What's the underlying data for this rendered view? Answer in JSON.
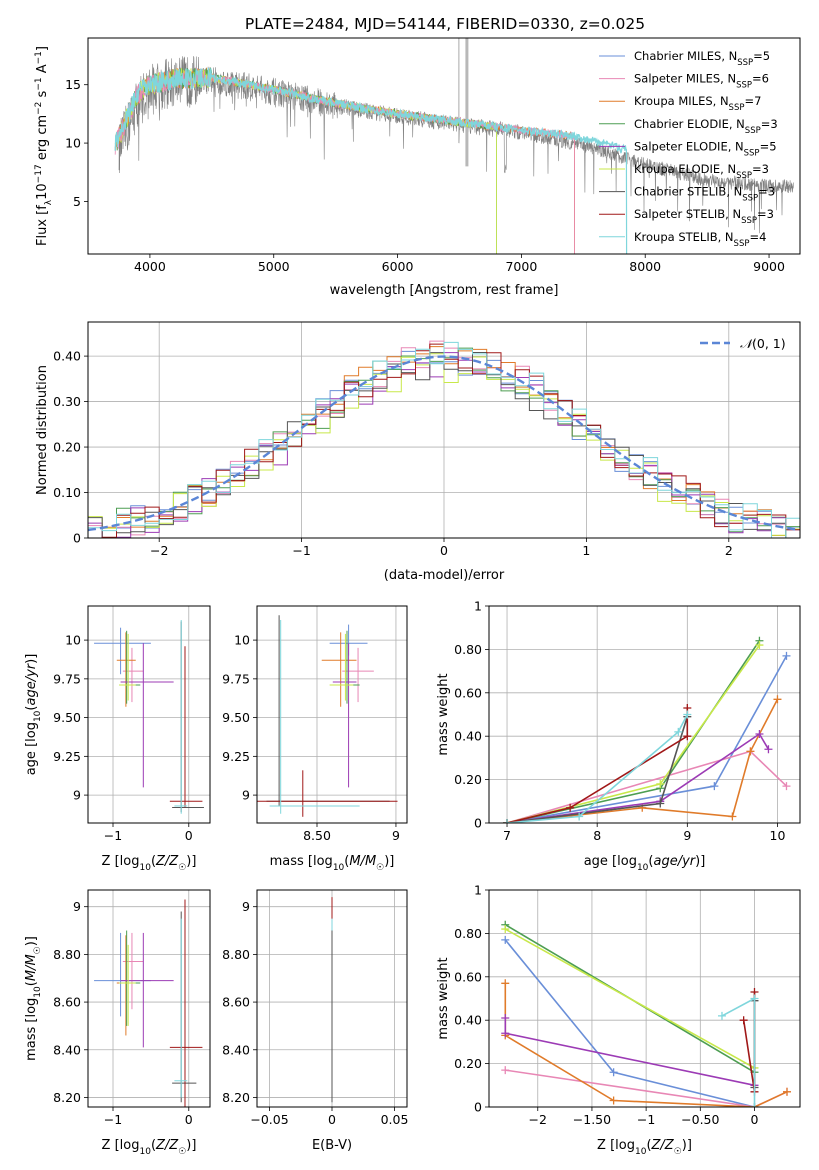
{
  "figure": {
    "title": "PLATE=2484, MJD=54144, FIBERID=0330, z=0.025"
  },
  "palette": {
    "chabrier_miles": "#6a8fd8",
    "salpeter_miles": "#e887b5",
    "kroupa_miles": "#e07b2a",
    "chabrier_elodie": "#4d9e52",
    "salpeter_elodie": "#9c3bb5",
    "kroupa_elodie": "#c8e84a",
    "chabrier_stelib": "#555555",
    "salpeter_stelib": "#a01818",
    "kroupa_stelib": "#7fd6dc",
    "data_spectrum": "#808080",
    "gaussian": "#5b86d6",
    "grid": "#b0b0b0"
  },
  "legend_entries": [
    {
      "key": "chabrier_miles",
      "pre": "Chabrier MILES, N",
      "sub": "SSP",
      "post": "=5"
    },
    {
      "key": "salpeter_miles",
      "pre": "Salpeter MILES, N",
      "sub": "SSP",
      "post": "=6"
    },
    {
      "key": "kroupa_miles",
      "pre": "Kroupa MILES, N",
      "sub": "SSP",
      "post": "=7"
    },
    {
      "key": "chabrier_elodie",
      "pre": "Chabrier ELODIE, N",
      "sub": "SSP",
      "post": "=3"
    },
    {
      "key": "salpeter_elodie",
      "pre": "Salpeter ELODIE, N",
      "sub": "SSP",
      "post": "=5"
    },
    {
      "key": "kroupa_elodie",
      "pre": "Kroupa ELODIE, N",
      "sub": "SSP",
      "post": "=3"
    },
    {
      "key": "chabrier_stelib",
      "pre": "Chabrier STELIB, N",
      "sub": "SSP",
      "post": "=3"
    },
    {
      "key": "salpeter_stelib",
      "pre": "Salpeter STELIB, N",
      "sub": "SSP",
      "post": "=3"
    },
    {
      "key": "kroupa_stelib",
      "pre": "Kroupa STELIB, N",
      "sub": "SSP",
      "post": "=4"
    }
  ],
  "chart_data": [
    {
      "id": "spectrum",
      "type": "line",
      "xlabel": "wavelength [Angstrom, rest frame]",
      "ylabel": "Flux [f_λ 10^-17 erg cm^-2 s^-1 A^-1]",
      "xlim": [
        3500,
        9250
      ],
      "ylim": [
        0.5,
        19
      ],
      "xticks": [
        4000,
        5000,
        6000,
        7000,
        8000,
        9000
      ],
      "yticks": [
        5,
        10,
        15
      ],
      "data_continuum": [
        [
          3750,
          9.5
        ],
        [
          3900,
          13.5
        ],
        [
          4000,
          14.6
        ],
        [
          4200,
          15.2
        ],
        [
          4500,
          15.4
        ],
        [
          5000,
          14.4
        ],
        [
          5500,
          13.2
        ],
        [
          6000,
          12.3
        ],
        [
          6500,
          11.6
        ],
        [
          7000,
          10.9
        ],
        [
          7500,
          9.8
        ],
        [
          8000,
          8.2
        ],
        [
          8500,
          6.8
        ],
        [
          9000,
          6.3
        ],
        [
          9200,
          6.3
        ]
      ],
      "model_continuum": [
        [
          3720,
          9.8
        ],
        [
          3900,
          14.2
        ],
        [
          4000,
          15.0
        ],
        [
          4200,
          15.5
        ],
        [
          4500,
          15.6
        ],
        [
          5000,
          14.6
        ],
        [
          5500,
          13.4
        ],
        [
          6000,
          12.5
        ],
        [
          6500,
          11.8
        ],
        [
          7000,
          11.1
        ],
        [
          7420,
          10.6
        ],
        [
          7800,
          9.6
        ]
      ],
      "model_end": {
        "miles": 7430,
        "elodie": 6800,
        "stelib": 7850
      }
    },
    {
      "id": "residuals",
      "type": "histogram",
      "xlabel": "(data-model)/error",
      "ylabel": "Normed distribution",
      "xlim": [
        -2.5,
        2.5
      ],
      "ylim": [
        0,
        0.475
      ],
      "xticks": [
        -2,
        -1,
        0,
        1,
        2
      ],
      "yticks": [
        0,
        0.1,
        0.2,
        0.3,
        0.4
      ],
      "bin_width": 0.1,
      "legend": "N(0,1)"
    },
    {
      "id": "age_vs_Z",
      "type": "errorbar",
      "xlabel": "Z [log10(Z/Z☉)]",
      "ylabel": "age [log10(age/yr)]",
      "xlim": [
        -1.33,
        0.28
      ],
      "ylim": [
        8.82,
        10.22
      ],
      "xticks": [
        -1,
        0
      ],
      "yticks": [
        9.0,
        9.25,
        9.5,
        9.75,
        10.0
      ],
      "points": [
        {
          "key": "chabrier_miles",
          "x": -0.9,
          "xerr": [
            0.35,
            0.4
          ],
          "y": 9.98,
          "yerr": [
            0.2,
            0.1
          ]
        },
        {
          "key": "salpeter_miles",
          "x": -0.75,
          "xerr": [
            0.12,
            0.15
          ],
          "y": 9.8,
          "yerr": [
            0.2,
            0.15
          ]
        },
        {
          "key": "kroupa_miles",
          "x": -0.83,
          "xerr": [
            0.12,
            0.13
          ],
          "y": 9.87,
          "yerr": [
            0.3,
            0.18
          ]
        },
        {
          "key": "chabrier_elodie",
          "x": -0.82,
          "xerr": [
            0.08,
            0.18
          ],
          "y": 9.71,
          "yerr": [
            0.12,
            0.35
          ]
        },
        {
          "key": "salpeter_elodie",
          "x": -0.6,
          "xerr": [
            0.3,
            0.4
          ],
          "y": 9.73,
          "yerr": [
            0.68,
            0.25
          ]
        },
        {
          "key": "kroupa_elodie",
          "x": -0.8,
          "xerr": [
            0.12,
            0.1
          ],
          "y": 9.71,
          "yerr": [
            0.1,
            0.33
          ]
        },
        {
          "key": "chabrier_stelib",
          "x": -0.1,
          "xerr": [
            0.12,
            0.3
          ],
          "y": 8.92,
          "yerr": [
            0.03,
            1.2
          ]
        },
        {
          "key": "salpeter_stelib",
          "x": -0.05,
          "xerr": [
            0.2,
            0.23
          ],
          "y": 8.96,
          "yerr": [
            0.04,
            1.0
          ]
        },
        {
          "key": "kroupa_stelib",
          "x": -0.1,
          "xerr": [
            0.09,
            0.08
          ],
          "y": 8.93,
          "yerr": [
            0.05,
            1.2
          ]
        }
      ]
    },
    {
      "id": "age_vs_mass",
      "type": "errorbar",
      "xlabel": "mass [log10(M/M☉)]",
      "ylabel": "",
      "xlim": [
        8.12,
        9.07
      ],
      "ylim": [
        8.82,
        10.22
      ],
      "xticks": [
        8.5,
        9.0
      ],
      "yticks": [
        9.0,
        9.25,
        9.5,
        9.75,
        10.0
      ],
      "points": [
        {
          "key": "chabrier_miles",
          "x": 8.7,
          "xerr": [
            0.12,
            0.12
          ],
          "y": 9.98,
          "yerr": [
            0.08,
            0.12
          ]
        },
        {
          "key": "salpeter_miles",
          "x": 8.76,
          "xerr": [
            0.1,
            0.1
          ],
          "y": 9.8,
          "yerr": [
            0.2,
            0.15
          ]
        },
        {
          "key": "kroupa_miles",
          "x": 8.65,
          "xerr": [
            0.12,
            0.1
          ],
          "y": 9.87,
          "yerr": [
            0.3,
            0.18
          ]
        },
        {
          "key": "chabrier_elodie",
          "x": 8.69,
          "xerr": [
            0.1,
            0.08
          ],
          "y": 9.71,
          "yerr": [
            0.12,
            0.35
          ]
        },
        {
          "key": "salpeter_elodie",
          "x": 8.7,
          "xerr": [
            0.1,
            0.05
          ],
          "y": 9.73,
          "yerr": [
            0.68,
            0.25
          ]
        },
        {
          "key": "kroupa_elodie",
          "x": 8.68,
          "xerr": [
            0.1,
            0.05
          ],
          "y": 9.71,
          "yerr": [
            0.1,
            0.33
          ]
        },
        {
          "key": "chabrier_stelib",
          "x": 8.26,
          "xerr": [
            0.08,
            0.7
          ],
          "y": 8.96,
          "yerr": [
            0.03,
            1.2
          ]
        },
        {
          "key": "salpeter_stelib",
          "x": 8.41,
          "xerr": [
            0.3,
            0.6
          ],
          "y": 8.96,
          "yerr": [
            0.1,
            0.2
          ]
        },
        {
          "key": "kroupa_stelib",
          "x": 8.27,
          "xerr": [
            0.07,
            0.5
          ],
          "y": 8.93,
          "yerr": [
            0.05,
            1.2
          ]
        }
      ]
    },
    {
      "id": "mass_vs_Z",
      "type": "errorbar",
      "xlabel": "Z [log10(Z/Z☉)]",
      "ylabel": "mass [log10(M/M☉)]",
      "xlim": [
        -1.33,
        0.28
      ],
      "ylim": [
        8.16,
        9.07
      ],
      "xticks": [
        -1,
        0
      ],
      "yticks": [
        8.2,
        8.4,
        8.6,
        8.8,
        9.0
      ],
      "points": [
        {
          "key": "chabrier_miles",
          "x": -0.9,
          "xerr": [
            0.35,
            0.4
          ],
          "y": 8.69,
          "yerr": [
            0.15,
            0.2
          ]
        },
        {
          "key": "salpeter_miles",
          "x": -0.75,
          "xerr": [
            0.12,
            0.15
          ],
          "y": 8.77,
          "yerr": [
            0.2,
            0.12
          ]
        },
        {
          "key": "kroupa_miles",
          "x": -0.83,
          "xerr": [
            0.12,
            0.13
          ],
          "y": 8.68,
          "yerr": [
            0.22,
            0.2
          ]
        },
        {
          "key": "chabrier_elodie",
          "x": -0.82,
          "xerr": [
            0.08,
            0.18
          ],
          "y": 8.68,
          "yerr": [
            0.18,
            0.22
          ]
        },
        {
          "key": "salpeter_elodie",
          "x": -0.6,
          "xerr": [
            0.3,
            0.4
          ],
          "y": 8.69,
          "yerr": [
            0.28,
            0.2
          ]
        },
        {
          "key": "kroupa_elodie",
          "x": -0.8,
          "xerr": [
            0.12,
            0.1
          ],
          "y": 8.68,
          "yerr": [
            0.18,
            0.16
          ]
        },
        {
          "key": "chabrier_stelib",
          "x": -0.1,
          "xerr": [
            0.12,
            0.2
          ],
          "y": 8.26,
          "yerr": [
            0.08,
            0.72
          ]
        },
        {
          "key": "salpeter_stelib",
          "x": -0.05,
          "xerr": [
            0.2,
            0.23
          ],
          "y": 8.41,
          "yerr": [
            0.3,
            0.62
          ]
        },
        {
          "key": "kroupa_stelib",
          "x": -0.1,
          "xerr": [
            0.09,
            0.08
          ],
          "y": 8.27,
          "yerr": [
            0.07,
            0.68
          ]
        }
      ]
    },
    {
      "id": "mass_vs_ebv",
      "type": "errorbar",
      "xlabel": "E(B-V)",
      "ylabel": "",
      "xlim": [
        -0.06,
        0.06
      ],
      "ylim": [
        8.16,
        9.07
      ],
      "xticks": [
        -0.05,
        0.0,
        0.05
      ],
      "yticks": [
        8.2,
        8.4,
        8.6,
        8.8,
        9.0
      ],
      "points": [
        {
          "key": "salpeter_stelib",
          "x": 0,
          "xerr": [
            0,
            0
          ],
          "y": 8.6,
          "yerr": [
            0.4,
            0.44
          ]
        },
        {
          "key": "kroupa_stelib",
          "x": 0,
          "xerr": [
            0,
            0
          ],
          "y": 8.6,
          "yerr": [
            0.42,
            0.35
          ]
        },
        {
          "key": "chabrier_stelib",
          "x": 0,
          "xerr": [
            0,
            0
          ],
          "y": 8.6,
          "yerr": [
            0.42,
            0.3
          ]
        }
      ]
    },
    {
      "id": "weight_vs_age",
      "type": "line",
      "xlabel": "age [log10(age/yr)]",
      "ylabel": "mass weight",
      "xlim": [
        6.8,
        10.25
      ],
      "ylim": [
        0,
        1.0
      ],
      "xticks": [
        7,
        8,
        9,
        10
      ],
      "yticks": [
        0.0,
        0.2,
        0.4,
        0.6,
        0.8,
        1.0
      ],
      "series": [
        {
          "key": "chabrier_miles",
          "points": [
            [
              7.0,
              0.0
            ],
            [
              9.3,
              0.17
            ],
            [
              10.1,
              0.77
            ]
          ]
        },
        {
          "key": "salpeter_miles",
          "points": [
            [
              7.0,
              0.0
            ],
            [
              9.7,
              0.33
            ],
            [
              10.1,
              0.17
            ]
          ]
        },
        {
          "key": "kroupa_miles",
          "points": [
            [
              7.0,
              0.0
            ],
            [
              8.5,
              0.07
            ],
            [
              9.5,
              0.03
            ],
            [
              9.7,
              0.33
            ],
            [
              10.0,
              0.57
            ]
          ]
        },
        {
          "key": "chabrier_elodie",
          "points": [
            [
              7.0,
              0.0
            ],
            [
              8.7,
              0.16
            ],
            [
              9.8,
              0.84
            ]
          ]
        },
        {
          "key": "salpeter_elodie",
          "points": [
            [
              7.0,
              0.0
            ],
            [
              8.7,
              0.1
            ],
            [
              9.8,
              0.41
            ],
            [
              9.9,
              0.34
            ]
          ]
        },
        {
          "key": "kroupa_elodie",
          "points": [
            [
              7.0,
              0.0
            ],
            [
              8.7,
              0.18
            ],
            [
              9.8,
              0.82
            ]
          ]
        },
        {
          "key": "chabrier_stelib",
          "points": [
            [
              7.0,
              0.0
            ],
            [
              8.7,
              0.09
            ],
            [
              9.0,
              0.49
            ]
          ]
        },
        {
          "key": "salpeter_stelib",
          "points": [
            [
              7.0,
              0.0
            ],
            [
              7.7,
              0.07
            ],
            [
              9.0,
              0.4
            ],
            [
              9.0,
              0.53
            ]
          ]
        },
        {
          "key": "kroupa_stelib",
          "points": [
            [
              7.0,
              0.0
            ],
            [
              7.8,
              0.03
            ],
            [
              8.9,
              0.42
            ],
            [
              9.0,
              0.5
            ]
          ]
        }
      ]
    },
    {
      "id": "weight_vs_Z",
      "type": "line",
      "xlabel": "Z [log10(Z/Z☉)]",
      "ylabel": "mass weight",
      "xlim": [
        -2.45,
        0.42
      ],
      "ylim": [
        0,
        1.0
      ],
      "xticks": [
        -2.0,
        -1.5,
        -1.0,
        -0.5,
        0.0
      ],
      "yticks": [
        0.0,
        0.2,
        0.4,
        0.6,
        0.8,
        1.0
      ],
      "series": [
        {
          "key": "chabrier_miles",
          "points": [
            [
              -2.3,
              0.77
            ],
            [
              -1.3,
              0.16
            ],
            [
              0.0,
              0.0
            ]
          ]
        },
        {
          "key": "salpeter_miles",
          "points": [
            [
              -2.3,
              0.17
            ],
            [
              0.0,
              0.0
            ],
            [
              0.3,
              0.07
            ]
          ]
        },
        {
          "key": "kroupa_miles",
          "points": [
            [
              -2.3,
              0.57
            ],
            [
              -2.3,
              0.33
            ],
            [
              -1.3,
              0.03
            ],
            [
              0.0,
              0.0
            ],
            [
              0.3,
              0.07
            ]
          ]
        },
        {
          "key": "chabrier_elodie",
          "points": [
            [
              -2.3,
              0.84
            ],
            [
              0.0,
              0.16
            ]
          ]
        },
        {
          "key": "salpeter_elodie",
          "points": [
            [
              -2.3,
              0.41
            ],
            [
              -2.3,
              0.34
            ],
            [
              0.0,
              0.1
            ]
          ]
        },
        {
          "key": "kroupa_elodie",
          "points": [
            [
              -2.3,
              0.82
            ],
            [
              0.0,
              0.18
            ]
          ]
        },
        {
          "key": "chabrier_stelib",
          "points": [
            [
              0.0,
              0.09
            ],
            [
              0.0,
              0.49
            ]
          ]
        },
        {
          "key": "salpeter_stelib",
          "points": [
            [
              -0.1,
              0.4
            ],
            [
              0.0,
              0.07
            ],
            [
              0.0,
              0.53
            ]
          ]
        },
        {
          "key": "kroupa_stelib",
          "points": [
            [
              -0.3,
              0.42
            ],
            [
              0.0,
              0.5
            ],
            [
              0.0,
              0.0
            ]
          ]
        }
      ]
    }
  ]
}
